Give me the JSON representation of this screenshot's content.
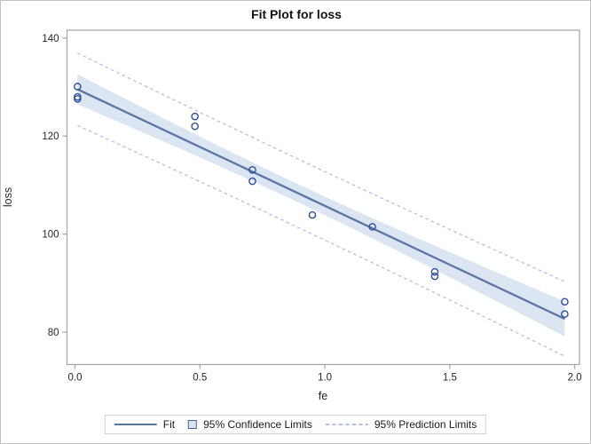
{
  "chart_data": {
    "type": "scatter",
    "title": "Fit Plot for loss",
    "xlabel": "fe",
    "ylabel": "loss",
    "xlim": [
      -0.032,
      2.019
    ],
    "ylim": [
      73.4,
      141.6
    ],
    "x_ticks": [
      0.0,
      0.5,
      1.0,
      1.5,
      2.0
    ],
    "x_tick_labels": [
      "0.0",
      "0.5",
      "1.0",
      "1.5",
      "2.0"
    ],
    "y_ticks": [
      140,
      120,
      100,
      80
    ],
    "y_tick_labels": [
      "140",
      "120",
      "100",
      "80"
    ],
    "grid": false,
    "legend_position": "bottom",
    "points": [
      [
        0.01,
        127.6
      ],
      [
        0.48,
        124.0
      ],
      [
        0.71,
        110.8
      ],
      [
        0.95,
        103.9
      ],
      [
        1.19,
        101.5
      ],
      [
        0.01,
        130.1
      ],
      [
        0.48,
        122.0
      ],
      [
        1.44,
        92.3
      ],
      [
        0.71,
        113.1
      ],
      [
        1.96,
        83.7
      ],
      [
        0.01,
        128.0
      ],
      [
        1.44,
        91.4
      ],
      [
        1.96,
        86.2
      ]
    ],
    "fit": {
      "intercept": 129.787,
      "slope": -24.02,
      "rmse": 3.056,
      "n": 13,
      "t_crit": 2.201,
      "mean_x": 0.8731,
      "sxx": 5.7088,
      "x_min": 0.01,
      "x_max": 1.96
    },
    "legend": [
      {
        "label": "Fit",
        "swatch": "line"
      },
      {
        "label": "95% Confidence Limits",
        "swatch": "box"
      },
      {
        "label": "95% Prediction Limits",
        "swatch": "dash"
      }
    ],
    "colors": {
      "fit_line": "#5b76a4",
      "band_fill": "#dce5f2",
      "prediction_line": "#b3c1e1",
      "marker": "#2f4f9e",
      "frame": "#a5a5a5",
      "tick_text": "#262626",
      "legend_swatch_box_fill": "#d9e4f1",
      "legend_swatch_box_border": "#47659c"
    }
  }
}
